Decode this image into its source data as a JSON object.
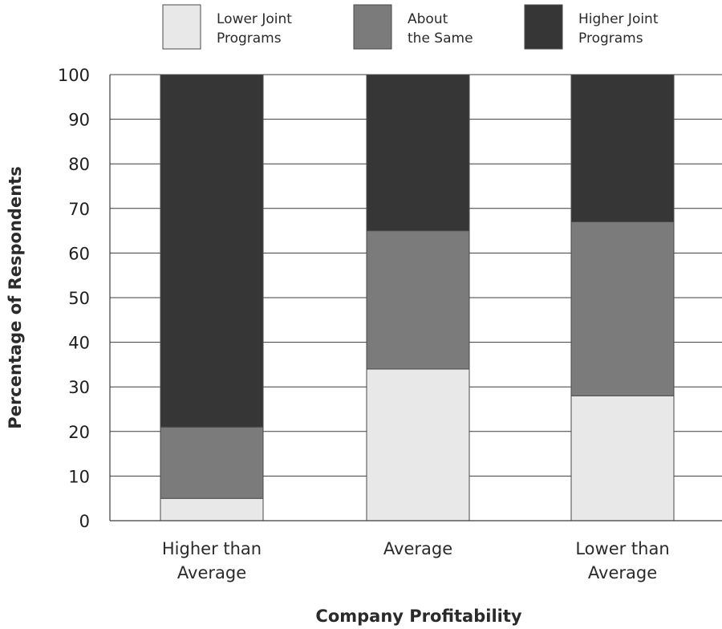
{
  "chart_data": {
    "type": "bar",
    "stacked": true,
    "categories": [
      [
        "Higher than",
        "Average"
      ],
      [
        "Average"
      ],
      [
        "Lower than",
        "Average"
      ]
    ],
    "series": [
      {
        "name": [
          "Lower Joint",
          "Programs"
        ],
        "values": [
          5,
          34,
          28
        ],
        "color": "#e8e8e8"
      },
      {
        "name": [
          "About",
          "the Same"
        ],
        "values": [
          16,
          31,
          39
        ],
        "color": "#7b7b7b"
      },
      {
        "name": [
          "Higher Joint",
          "Programs"
        ],
        "values": [
          79,
          35,
          33
        ],
        "color": "#363636"
      }
    ],
    "xlabel": "Company Profitability",
    "ylabel": "Percentage of Respondents",
    "ylim": [
      0,
      100
    ],
    "yticks": [
      0,
      10,
      20,
      30,
      40,
      50,
      60,
      70,
      80,
      90,
      100
    ],
    "grid": true,
    "legend_position": "top"
  }
}
